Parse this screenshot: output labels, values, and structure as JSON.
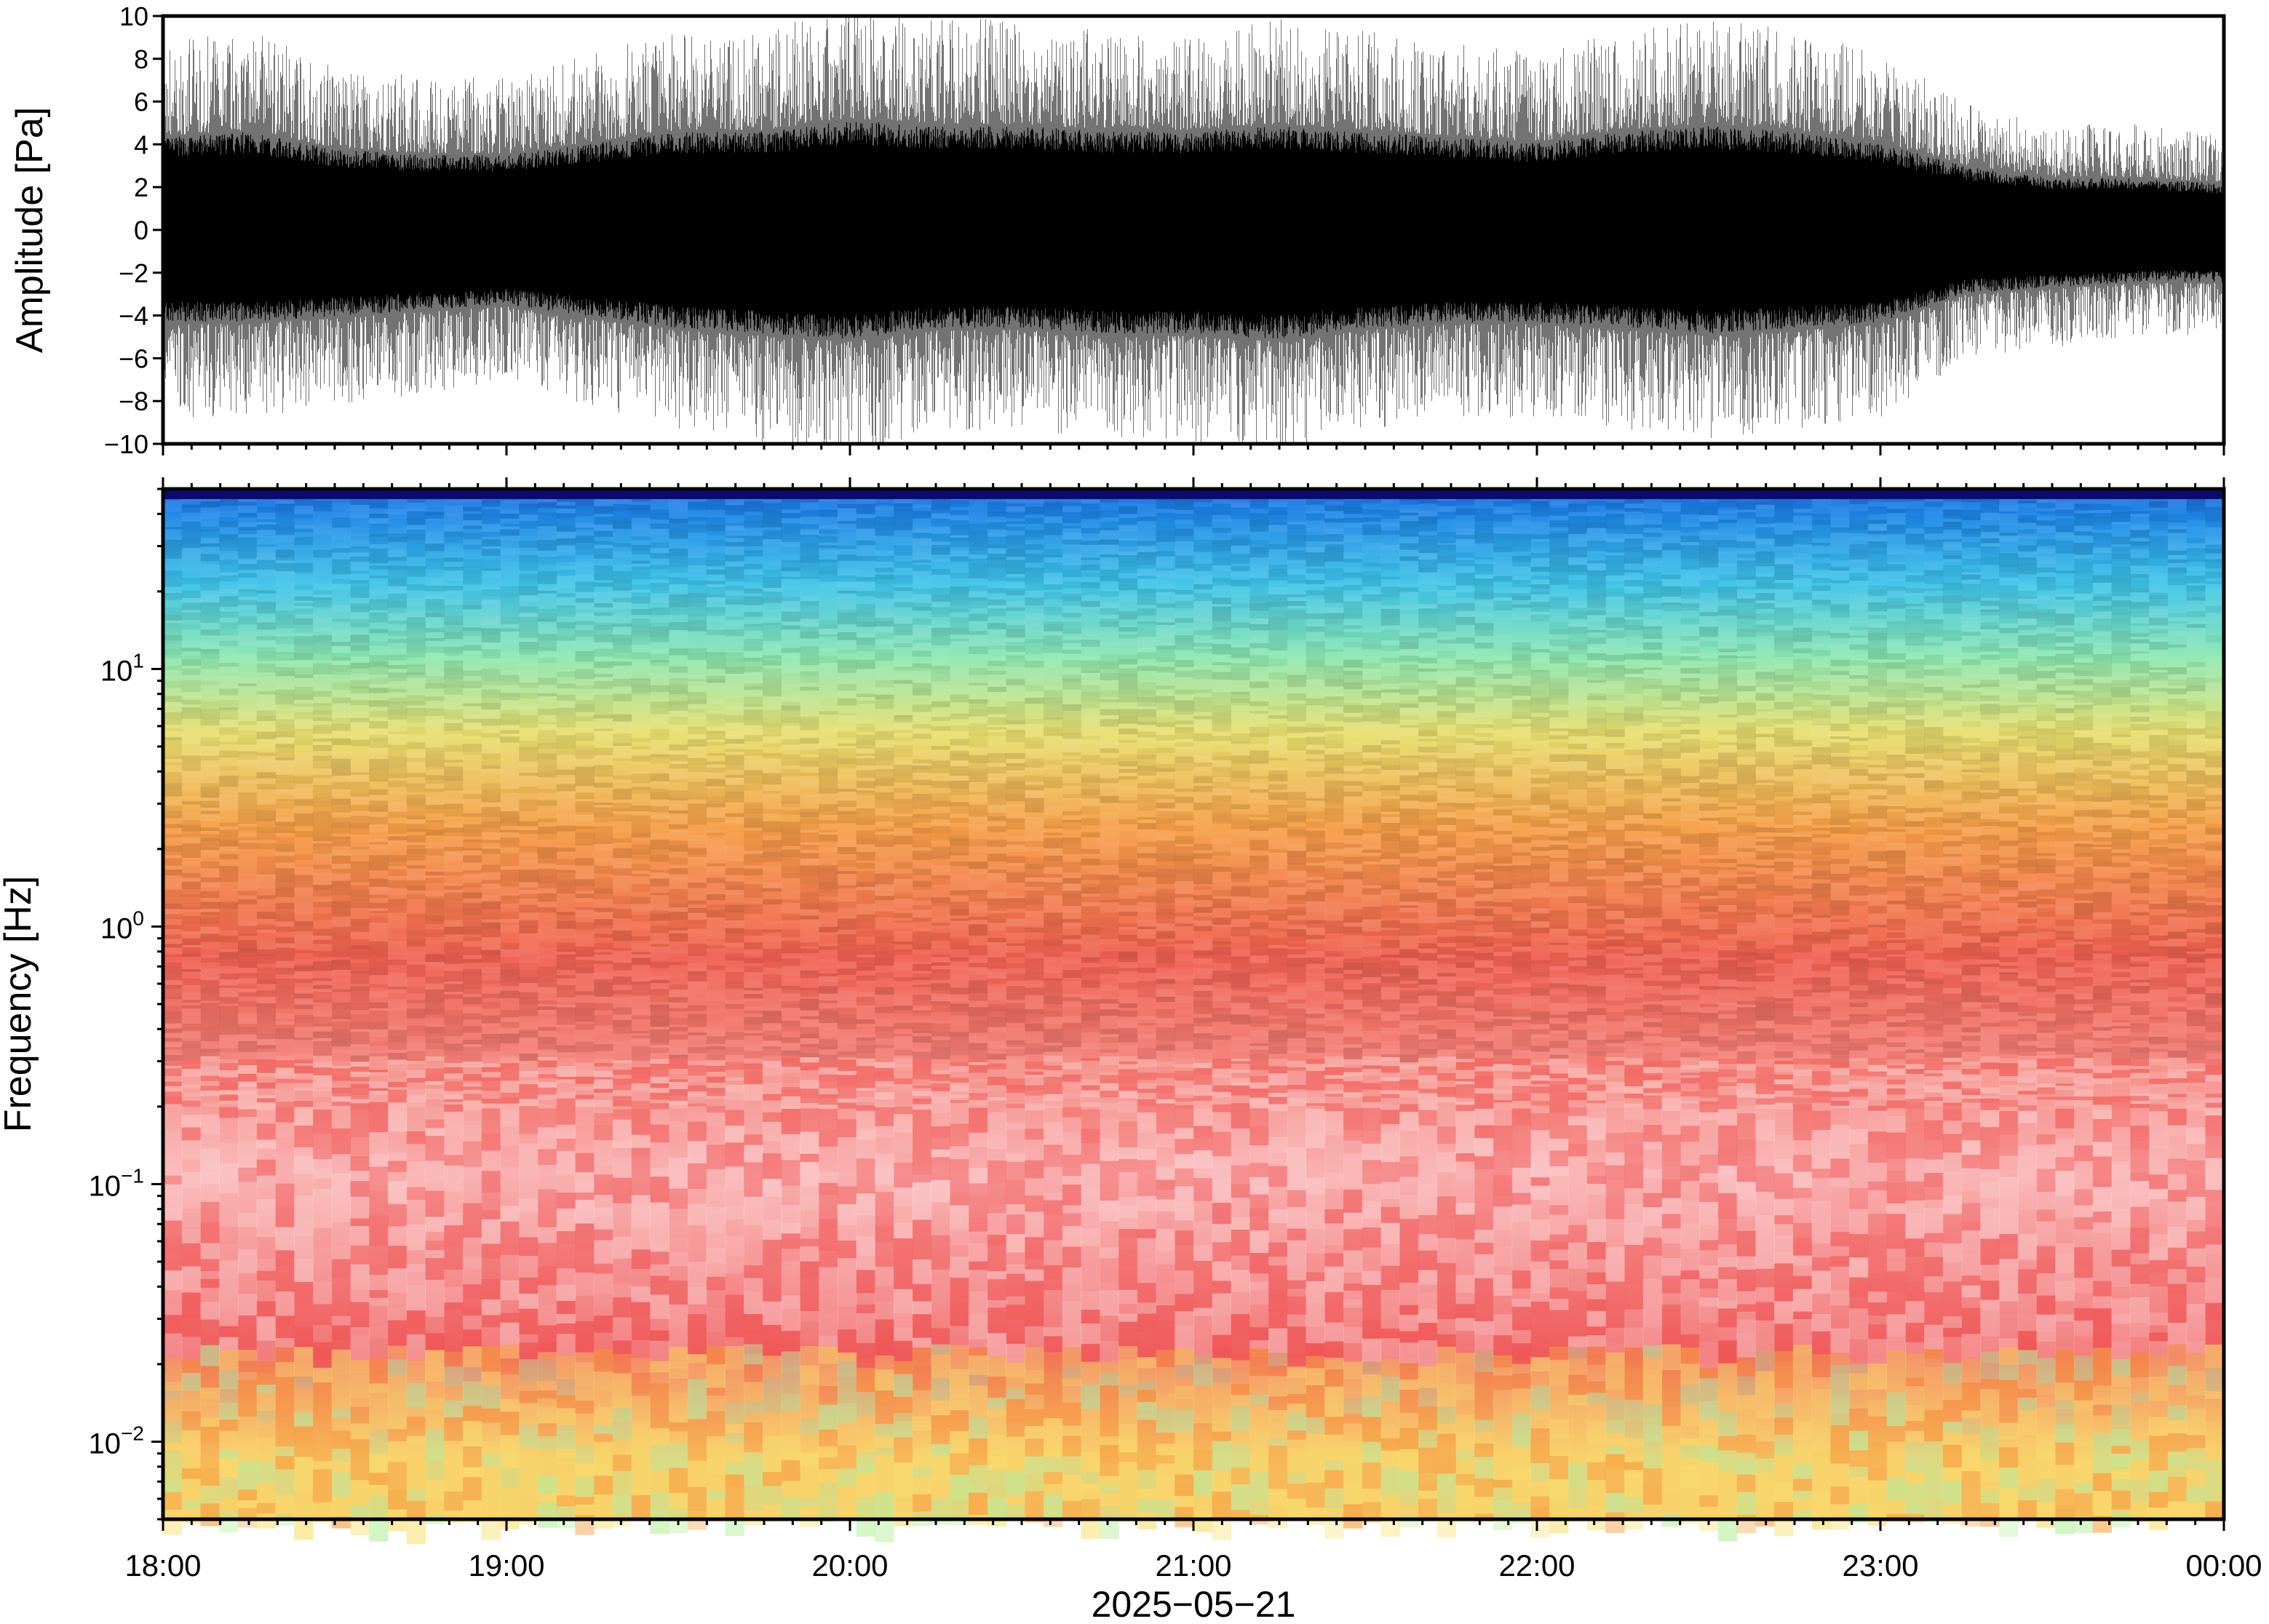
{
  "chart_data": [
    {
      "type": "line",
      "ylabel": "Amplitude [Pa]",
      "ylim": [
        -10,
        10
      ],
      "yticks": [
        "10",
        "8",
        "6",
        "4",
        "2",
        "0",
        "−2",
        "−4",
        "−6",
        "−8",
        "−10"
      ],
      "ytick_values": [
        10,
        8,
        6,
        4,
        2,
        0,
        -2,
        -4,
        -6,
        -8,
        -10
      ],
      "x": [
        "18:00",
        "18:15",
        "18:30",
        "18:45",
        "19:00",
        "19:15",
        "19:30",
        "19:45",
        "20:00",
        "20:15",
        "20:30",
        "20:45",
        "21:00",
        "21:15",
        "21:30",
        "21:45",
        "22:00",
        "22:15",
        "22:30",
        "22:45",
        "23:00",
        "23:15",
        "23:30",
        "23:45",
        "00:00"
      ],
      "series": [
        {
          "envelope_max": [
            8.0,
            8.5,
            7.0,
            6.5,
            6.5,
            7.5,
            8.5,
            8.5,
            9.5,
            9.0,
            9.0,
            8.5,
            8.5,
            9.0,
            8.5,
            8.0,
            7.5,
            8.5,
            9.0,
            8.5,
            7.5,
            5.5,
            4.5,
            4.5,
            4.0
          ],
          "envelope_min": [
            -8.0,
            -8.0,
            -7.5,
            -7.0,
            -6.5,
            -7.5,
            -8.5,
            -9.0,
            -9.5,
            -8.5,
            -8.5,
            -9.0,
            -9.0,
            -9.5,
            -8.5,
            -8.0,
            -8.0,
            -8.5,
            -9.0,
            -8.5,
            -8.0,
            -5.5,
            -5.0,
            -4.5,
            -4.5
          ]
        }
      ],
      "color": "#000000"
    },
    {
      "type": "heatmap",
      "ylabel": "Frequency [Hz]",
      "yscale": "log",
      "ylim": [
        0.005,
        50
      ],
      "yticks": [
        {
          "base": "10",
          "exp": "1",
          "value": 10
        },
        {
          "base": "10",
          "exp": "0",
          "value": 1
        },
        {
          "base": "10",
          "exp": "−1",
          "value": 0.1
        },
        {
          "base": "10",
          "exp": "−2",
          "value": 0.01
        }
      ],
      "xticks": [
        "18:00",
        "19:00",
        "20:00",
        "21:00",
        "22:00",
        "23:00",
        "00:00"
      ],
      "xlabel": "2025−05−21",
      "colormap": [
        "#0a0a6e",
        "#1a6fe0",
        "#2fb0f0",
        "#50d8d0",
        "#b0f0a0",
        "#f0e870",
        "#f8b040",
        "#f07048",
        "#f05858",
        "#f8a8a8"
      ],
      "bands": [
        {
          "f_low": 30,
          "f_high": 50,
          "color": "#1f8ae8"
        },
        {
          "f_low": 15,
          "f_high": 30,
          "color": "#3fc4e8"
        },
        {
          "f_low": 8,
          "f_high": 15,
          "color": "#8ee8b0"
        },
        {
          "f_low": 4,
          "f_high": 8,
          "color": "#e8e070"
        },
        {
          "f_low": 1.5,
          "f_high": 4,
          "color": "#f6a048"
        },
        {
          "f_low": 0.4,
          "f_high": 1.5,
          "color": "#f06050"
        },
        {
          "f_low": 0.03,
          "f_high": 0.4,
          "color": "#f8a0a0"
        },
        {
          "f_low": 0.015,
          "f_high": 0.03,
          "color": "#f06060"
        },
        {
          "f_low": 0.005,
          "f_high": 0.015,
          "color": "#f8c868"
        }
      ]
    }
  ]
}
